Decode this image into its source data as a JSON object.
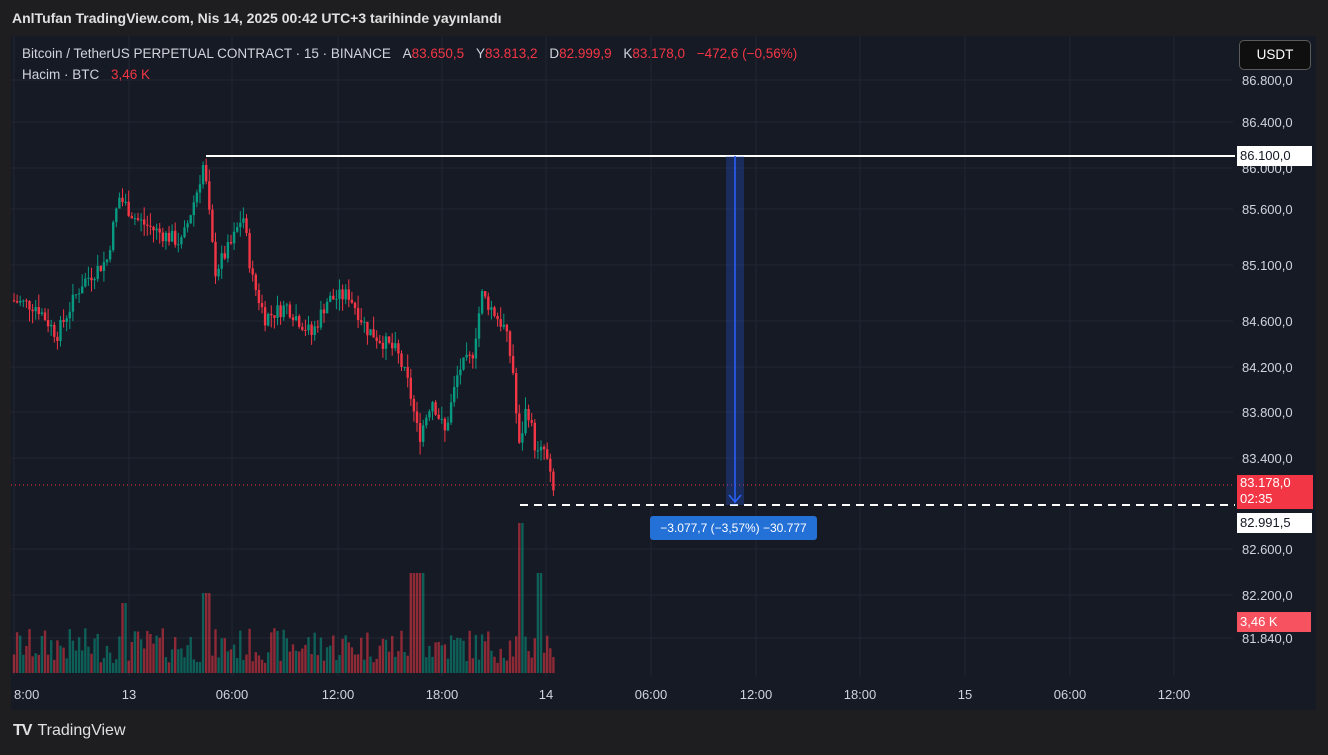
{
  "header": {
    "title": "AnlTufan TradingView.com, Nis 14, 2025 00:42 UTC+3 tarihinde yayınlandı"
  },
  "legend": {
    "symbol": "Bitcoin / TetherUS PERPETUAL CONTRACT · 15 · BINANCE",
    "open_label": "A",
    "open": "83.650,5",
    "high_label": "Y",
    "high": "83.813,2",
    "low_label": "D",
    "low": "82.999,9",
    "close_label": "K",
    "close": "83.178,0",
    "change": "−472,6 (−0,56%)",
    "volume_label": "Hacim · BTC",
    "volume": "3,46 K"
  },
  "currency_button": "USDT",
  "price_axis": {
    "ticks": [
      "86.800,0",
      "86.400,0",
      "86.000,0",
      "85.600,0",
      "85.100,0",
      "84.600,0",
      "84.200,0",
      "83.800,0",
      "83.400,0",
      "82.600,0",
      "82.200,0",
      "81.840,0"
    ],
    "tag_high": "86.100,0",
    "tag_last_price": "83.178,0",
    "tag_last_timer": "02:35",
    "tag_low": "82.991,5",
    "tag_volume": "3,46 K"
  },
  "time_axis": {
    "ticks": [
      "8:00",
      "13",
      "06:00",
      "12:00",
      "18:00",
      "14",
      "06:00",
      "12:00",
      "18:00",
      "15",
      "06:00",
      "12:00"
    ]
  },
  "measure": {
    "label": "−3.077,7 (−3,57%) −30.777"
  },
  "drawings": {
    "high_level": 86100.0,
    "low_level": 82991.5
  },
  "colors": {
    "up": "#089981",
    "down": "#f23645",
    "measure": "#2962ff",
    "background": "#161a25"
  },
  "footer": {
    "brand": "TradingView",
    "logo_icon": "tradingview-logo-icon"
  }
}
